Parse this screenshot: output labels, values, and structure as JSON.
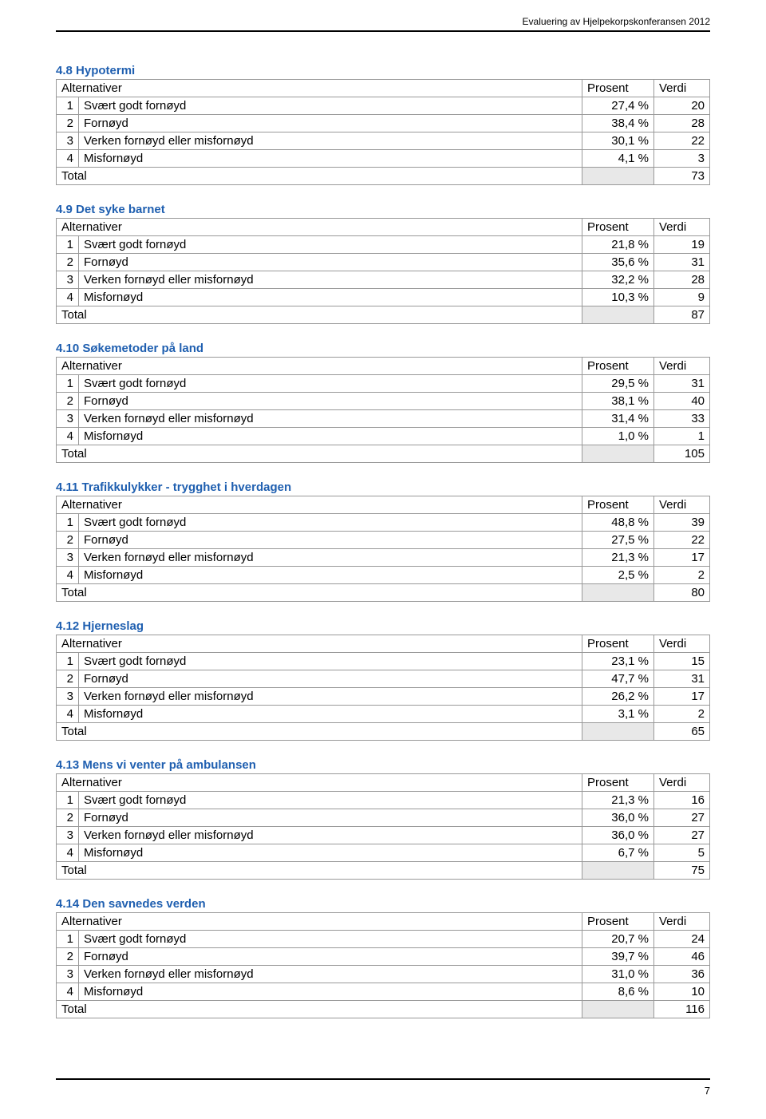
{
  "header": {
    "text": "Evaluering av Hjelpekorpskonferansen 2012"
  },
  "columns": {
    "alt": "Alternativer",
    "prosent": "Prosent",
    "verdi": "Verdi"
  },
  "rowLabels": {
    "r1": "Svært godt fornøyd",
    "r2": "Fornøyd",
    "r3": "Verken fornøyd eller misfornøyd",
    "r4": "Misfornøyd",
    "total": "Total"
  },
  "section_title_color": "#1f5fb0",
  "sections": [
    {
      "title": "4.8 Hypotermi",
      "rows": [
        {
          "idx": "1",
          "label_key": "r1",
          "prosent": "27,4 %",
          "verdi": "20"
        },
        {
          "idx": "2",
          "label_key": "r2",
          "prosent": "38,4 %",
          "verdi": "28"
        },
        {
          "idx": "3",
          "label_key": "r3",
          "prosent": "30,1 %",
          "verdi": "22"
        },
        {
          "idx": "4",
          "label_key": "r4",
          "prosent": "4,1 %",
          "verdi": "3"
        }
      ],
      "total": "73"
    },
    {
      "title": "4.9 Det syke barnet",
      "rows": [
        {
          "idx": "1",
          "label_key": "r1",
          "prosent": "21,8 %",
          "verdi": "19"
        },
        {
          "idx": "2",
          "label_key": "r2",
          "prosent": "35,6 %",
          "verdi": "31"
        },
        {
          "idx": "3",
          "label_key": "r3",
          "prosent": "32,2 %",
          "verdi": "28"
        },
        {
          "idx": "4",
          "label_key": "r4",
          "prosent": "10,3 %",
          "verdi": "9"
        }
      ],
      "total": "87"
    },
    {
      "title": "4.10 Søkemetoder på land",
      "rows": [
        {
          "idx": "1",
          "label_key": "r1",
          "prosent": "29,5 %",
          "verdi": "31"
        },
        {
          "idx": "2",
          "label_key": "r2",
          "prosent": "38,1 %",
          "verdi": "40"
        },
        {
          "idx": "3",
          "label_key": "r3",
          "prosent": "31,4 %",
          "verdi": "33"
        },
        {
          "idx": "4",
          "label_key": "r4",
          "prosent": "1,0 %",
          "verdi": "1"
        }
      ],
      "total": "105"
    },
    {
      "title": "4.11 Trafikkulykker - trygghet i hverdagen",
      "rows": [
        {
          "idx": "1",
          "label_key": "r1",
          "prosent": "48,8 %",
          "verdi": "39"
        },
        {
          "idx": "2",
          "label_key": "r2",
          "prosent": "27,5 %",
          "verdi": "22"
        },
        {
          "idx": "3",
          "label_key": "r3",
          "prosent": "21,3 %",
          "verdi": "17"
        },
        {
          "idx": "4",
          "label_key": "r4",
          "prosent": "2,5 %",
          "verdi": "2"
        }
      ],
      "total": "80"
    },
    {
      "title": "4.12 Hjerneslag",
      "rows": [
        {
          "idx": "1",
          "label_key": "r1",
          "prosent": "23,1 %",
          "verdi": "15"
        },
        {
          "idx": "2",
          "label_key": "r2",
          "prosent": "47,7 %",
          "verdi": "31"
        },
        {
          "idx": "3",
          "label_key": "r3",
          "prosent": "26,2 %",
          "verdi": "17"
        },
        {
          "idx": "4",
          "label_key": "r4",
          "prosent": "3,1 %",
          "verdi": "2"
        }
      ],
      "total": "65"
    },
    {
      "title": "4.13 Mens vi venter på ambulansen",
      "rows": [
        {
          "idx": "1",
          "label_key": "r1",
          "prosent": "21,3 %",
          "verdi": "16"
        },
        {
          "idx": "2",
          "label_key": "r2",
          "prosent": "36,0 %",
          "verdi": "27"
        },
        {
          "idx": "3",
          "label_key": "r3",
          "prosent": "36,0 %",
          "verdi": "27"
        },
        {
          "idx": "4",
          "label_key": "r4",
          "prosent": "6,7 %",
          "verdi": "5"
        }
      ],
      "total": "75"
    },
    {
      "title": "4.14 Den savnedes verden",
      "rows": [
        {
          "idx": "1",
          "label_key": "r1",
          "prosent": "20,7 %",
          "verdi": "24"
        },
        {
          "idx": "2",
          "label_key": "r2",
          "prosent": "39,7 %",
          "verdi": "46"
        },
        {
          "idx": "3",
          "label_key": "r3",
          "prosent": "31,0 %",
          "verdi": "36"
        },
        {
          "idx": "4",
          "label_key": "r4",
          "prosent": "8,6 %",
          "verdi": "10"
        }
      ],
      "total": "116"
    }
  ],
  "footer": {
    "page_number": "7"
  }
}
